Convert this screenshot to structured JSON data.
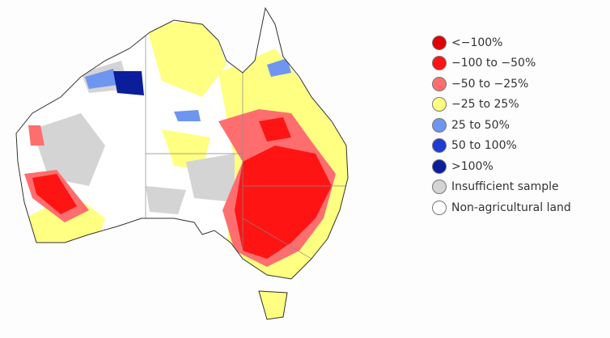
{
  "legend": [
    {
      "label": "<−100%",
      "color": "#e00000"
    },
    {
      "label": "−100 to −50%",
      "color": "#ff1414"
    },
    {
      "label": "−50 to −25%",
      "color": "#ff6e6e"
    },
    {
      "label": "−25 to 25%",
      "color": "#ffff82"
    },
    {
      "label": "25 to 50%",
      "color": "#6e96f0"
    },
    {
      "label": "50 to 100%",
      "color": "#1e3cd2"
    },
    {
      "label": ">100%",
      "color": "#0a1e9b"
    },
    {
      "label": "Insufficient sample",
      "color": "#d4d4d4"
    },
    {
      "label": "Non-agricultural land",
      "color": "#ffffff"
    }
  ]
}
